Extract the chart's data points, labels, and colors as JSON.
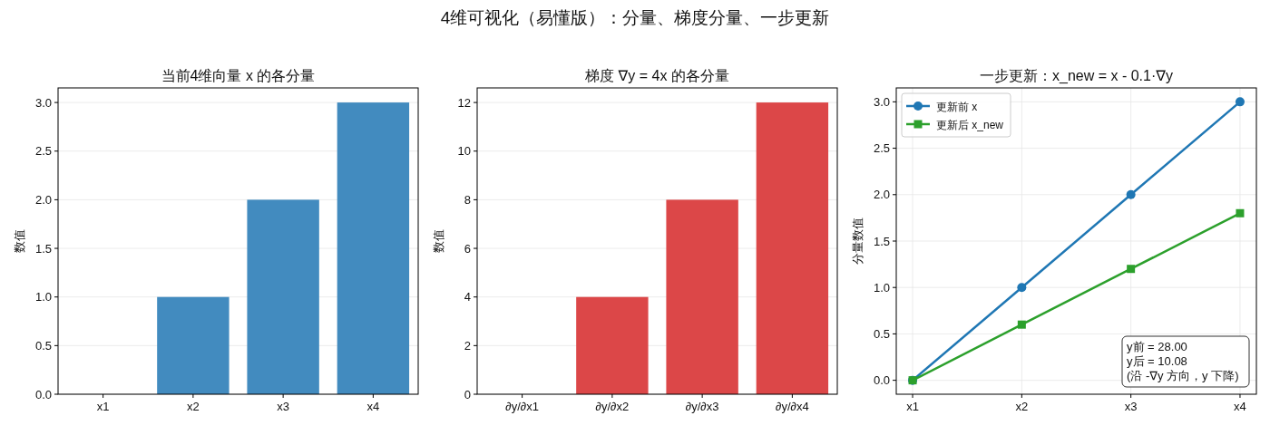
{
  "chart_data": [
    {
      "type": "other",
      "title": "4维可视化（易懂版）：分量、梯度分量、一步更新"
    },
    {
      "type": "bar",
      "title": "当前4维向量 x 的各分量",
      "ylabel": "数值",
      "categories": [
        "x1",
        "x2",
        "x3",
        "x4"
      ],
      "values": [
        0,
        1,
        2,
        3
      ],
      "color": "#428bbf",
      "ylim": [
        0,
        3.15
      ],
      "yticks": [
        {
          "value": 0,
          "label": "0.0"
        },
        {
          "value": 0.5,
          "label": "0.5"
        },
        {
          "value": 1,
          "label": "1.0"
        },
        {
          "value": 1.5,
          "label": "1.5"
        },
        {
          "value": 2,
          "label": "2.0"
        },
        {
          "value": 2.5,
          "label": "2.5"
        },
        {
          "value": 3,
          "label": "3.0"
        }
      ],
      "grid": "y"
    },
    {
      "type": "bar",
      "title": "梯度 ∇y = 4x 的各分量",
      "ylabel": "数值",
      "categories": [
        "∂y/∂x1",
        "∂y/∂x2",
        "∂y/∂x3",
        "∂y/∂x4"
      ],
      "values": [
        0,
        4,
        8,
        12
      ],
      "color": "#dc4748",
      "ylim": [
        0,
        12.6
      ],
      "yticks": [
        0,
        2,
        4,
        6,
        8,
        10,
        12
      ],
      "grid": "y"
    },
    {
      "type": "line",
      "title": "一步更新：x_new = x - 0.1·∇y",
      "ylabel": "分量数值",
      "categories": [
        "x1",
        "x2",
        "x3",
        "x4"
      ],
      "series": [
        {
          "name": "更新前 x",
          "color": "#1f77b4",
          "marker": "circle",
          "values": [
            0,
            1,
            2,
            3
          ]
        },
        {
          "name": "更新后 x_new",
          "color": "#2ca02c",
          "marker": "square",
          "values": [
            0,
            0.6,
            1.2,
            1.8
          ]
        }
      ],
      "ylim": [
        -0.15,
        3.15
      ],
      "yticks": [
        {
          "value": 0,
          "label": "0.0"
        },
        {
          "value": 0.5,
          "label": "0.5"
        },
        {
          "value": 1,
          "label": "1.0"
        },
        {
          "value": 1.5,
          "label": "1.5"
        },
        {
          "value": 2,
          "label": "2.0"
        },
        {
          "value": 2.5,
          "label": "2.5"
        },
        {
          "value": 3,
          "label": "3.0"
        }
      ],
      "grid": true,
      "legend": "top left",
      "annotations": [
        "y前 = 28.00\ny后 = 10.08\n(沿 -∇y 方向，y 下降)"
      ]
    }
  ]
}
